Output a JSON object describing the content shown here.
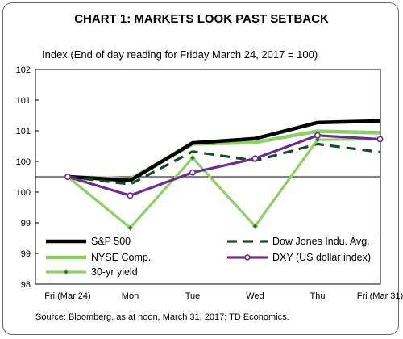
{
  "chart_title": "CHART 1: MARKETS LOOK PAST SETBACK",
  "source": "Bloomberg, as at noon, March 31, 2017; TD Economics.",
  "chart_data": {
    "type": "line",
    "subtitle": "Index (End of day reading for Friday March 24, 2017 = 100)",
    "categories": [
      "Fri (Mar 24)",
      "Mon",
      "Tue",
      "Wed",
      "Thu",
      "Fri (Mar 31)"
    ],
    "y_tick_labels": [
      "98",
      "99",
      "99",
      "100",
      "100",
      "101",
      "101",
      "102"
    ],
    "ylim": [
      98,
      102
    ],
    "reference_line": 100,
    "legend_placement": "bottom-left, two columns",
    "series": [
      {
        "name": "S&P 500",
        "color": "#000000",
        "style": "solid",
        "marker": "none",
        "values": [
          100,
          99.93,
          100.63,
          100.71,
          101.01,
          101.04
        ]
      },
      {
        "name": "Dow Jones Indu. Avg.",
        "color": "#174a24",
        "style": "dashed",
        "marker": "none",
        "values": [
          100,
          99.86,
          100.47,
          100.3,
          100.61,
          100.46
        ]
      },
      {
        "name": "NYSE Comp.",
        "color": "#8fcf6a",
        "style": "solid",
        "marker": "none",
        "values": [
          100,
          99.96,
          100.61,
          100.64,
          100.85,
          100.82
        ]
      },
      {
        "name": "DXY (US dollar index)",
        "color": "#6a2c91",
        "style": "solid",
        "marker": "circle",
        "values": [
          100,
          99.65,
          100.08,
          100.34,
          100.77,
          100.7
        ]
      },
      {
        "name": "30-yr yield",
        "color": "#8fcf6a",
        "style": "solid",
        "marker": "diamond",
        "values": [
          100,
          99.05,
          100.35,
          99.08,
          100.69,
          100.7
        ]
      }
    ]
  }
}
